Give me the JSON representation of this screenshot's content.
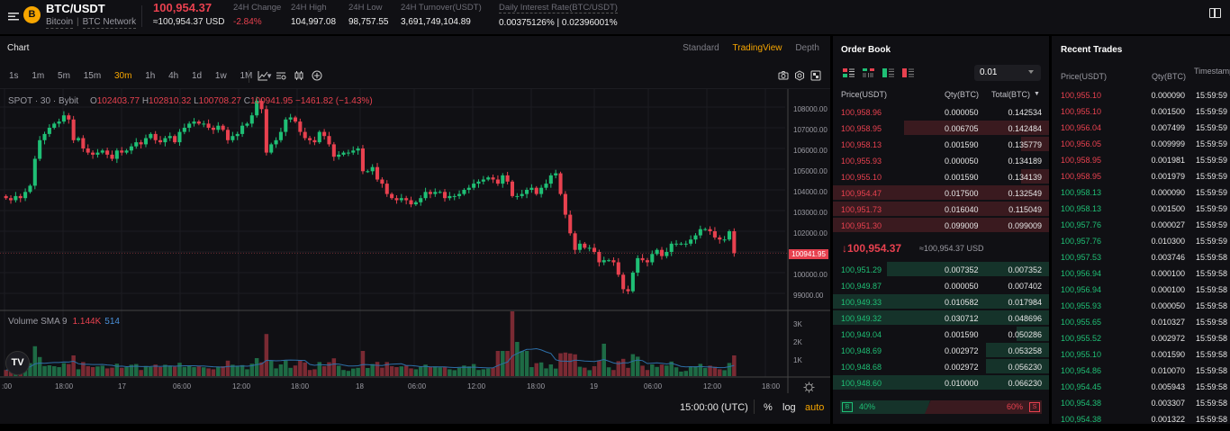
{
  "header": {
    "pair": "BTC/USDT",
    "coin_icon": "bitcoin-icon",
    "coin_name": "Bitcoin",
    "network": "BTC Network",
    "last_price": "100,954.37",
    "last_price_usd": "≈100,954.37 USD",
    "stats": [
      {
        "label": "24H Change",
        "value": "-2.84%",
        "color": "#e8414f"
      },
      {
        "label": "24H High",
        "value": "104,997.08"
      },
      {
        "label": "24H Low",
        "value": "98,757.55"
      },
      {
        "label": "24H Turnover(USDT)",
        "value": "3,691,749,104.89"
      },
      {
        "label": "Daily Interest Rate(BTC/USDT)",
        "value": "0.00375126% | 0.02396001%"
      }
    ]
  },
  "chart": {
    "title": "Chart",
    "views": [
      "Standard",
      "TradingView",
      "Depth"
    ],
    "active_view": "TradingView",
    "intervals": [
      "1s",
      "1m",
      "5m",
      "15m",
      "30m",
      "1h",
      "4h",
      "1d",
      "1w",
      "1M"
    ],
    "active_interval": "30m",
    "legend": {
      "symbol": "SPOT · 30 · Bybit",
      "open_label": "O",
      "open": "102403.77",
      "high_label": "H",
      "high": "102810.32",
      "low_label": "L",
      "low": "100708.27",
      "close_label": "C",
      "close": "100941.95",
      "change": "−1461.82 (−1.43%)"
    },
    "current_price_label": "100941.95",
    "volume_legend": {
      "label": "Volume SMA 9",
      "value1": "1.144K",
      "value2": "514"
    },
    "price_axis": [
      "108000.00",
      "107000.00",
      "106000.00",
      "105000.00",
      "104000.00",
      "103000.00",
      "102000.00",
      "100000.00",
      "99000.00"
    ],
    "volume_axis": [
      "3K",
      "2K",
      "1K"
    ],
    "time_axis": [
      ":00",
      "18:00",
      "17",
      "06:00",
      "12:00",
      "18:00",
      "18",
      "06:00",
      "12:00",
      "18:00",
      "19",
      "06:00",
      "12:00",
      "18:00"
    ],
    "footer": {
      "time": "15:00:00 (UTC)",
      "percent": "%",
      "log": "log",
      "auto": "auto"
    },
    "colors": {
      "up": "#1fbf75",
      "down": "#e8414f",
      "accent": "#f7a600"
    }
  },
  "chart_data": {
    "type": "candlestick",
    "title": "BTC/USDT SPOT 30m",
    "ylabel": "Price (USDT)",
    "ylim": [
      98500,
      108500
    ],
    "close_series_approx": [
      103600,
      103500,
      103700,
      103600,
      103900,
      104200,
      105500,
      106400,
      106700,
      107000,
      107200,
      107300,
      107600,
      107400,
      106400,
      106500,
      106000,
      105800,
      105700,
      105800,
      105900,
      105700,
      105500,
      105900,
      105800,
      105900,
      106100,
      106300,
      106200,
      106500,
      106700,
      106400,
      106300,
      106500,
      106600,
      106300,
      106800,
      107000,
      107200,
      107300,
      107200,
      107200,
      107000,
      106900,
      107100,
      106900,
      106400,
      106600,
      106700,
      107100,
      107200,
      107600,
      108300,
      107900,
      105800,
      106200,
      106400,
      106800,
      107400,
      107500,
      107300,
      106800,
      106500,
      106400,
      106300,
      106800,
      106600,
      106200,
      105600,
      105700,
      105800,
      105800,
      105900,
      106000,
      104900,
      104900,
      105100,
      104500,
      104300,
      103800,
      103600,
      103500,
      103600,
      103500,
      103300,
      103400,
      103600,
      103900,
      103800,
      103900,
      103900,
      103600,
      103700,
      103700,
      103800,
      104000,
      104100,
      104300,
      104400,
      104500,
      104600,
      104500,
      104300,
      104700,
      104400,
      103700,
      103700,
      103800,
      104000,
      104100,
      103800,
      104100,
      104300,
      104700,
      104800,
      103800,
      102800,
      101900,
      101100,
      101400,
      101200,
      101200,
      101000,
      100500,
      100600,
      100600,
      100500,
      99900,
      99200,
      99100,
      100000,
      100700,
      100600,
      100500,
      100900,
      101100,
      100800,
      101000,
      101400,
      101400,
      101400,
      101400,
      101600,
      101800,
      102100,
      102100,
      102000,
      101700,
      101600,
      101600,
      102000,
      100942
    ],
    "volume_note": "Volume bars mostly 300–800, spikes ~2.5K-3.6K around day 18 18:00-21:00"
  },
  "order_book": {
    "title": "Order Book",
    "precision": "0.01",
    "headers": {
      "price": "Price(USDT)",
      "qty": "Qty(BTC)",
      "total": "Total(BTC)"
    },
    "asks": [
      {
        "price": "100,958.96",
        "qty": "0.000050",
        "total": "0.142534",
        "depth": 0
      },
      {
        "price": "100,958.95",
        "qty": "0.006705",
        "total": "0.142484",
        "depth": 67
      },
      {
        "price": "100,958.13",
        "qty": "0.001590",
        "total": "0.135779",
        "depth": 13
      },
      {
        "price": "100,955.93",
        "qty": "0.000050",
        "total": "0.134189",
        "depth": 0
      },
      {
        "price": "100,955.10",
        "qty": "0.001590",
        "total": "0.134139",
        "depth": 13
      },
      {
        "price": "100,954.47",
        "qty": "0.017500",
        "total": "0.132549",
        "depth": 100
      },
      {
        "price": "100,951.73",
        "qty": "0.016040",
        "total": "0.115049",
        "depth": 100
      },
      {
        "price": "100,951.30",
        "qty": "0.099009",
        "total": "0.099009",
        "depth": 100
      }
    ],
    "mid_price": "100,954.37",
    "mid_usd": "≈100,954.37 USD",
    "bids": [
      {
        "price": "100,951.29",
        "qty": "0.007352",
        "total": "0.007352",
        "depth": 75
      },
      {
        "price": "100,949.87",
        "qty": "0.000050",
        "total": "0.007402",
        "depth": 0
      },
      {
        "price": "100,949.33",
        "qty": "0.010582",
        "total": "0.017984",
        "depth": 100
      },
      {
        "price": "100,949.32",
        "qty": "0.030712",
        "total": "0.048696",
        "depth": 100
      },
      {
        "price": "100,949.04",
        "qty": "0.001590",
        "total": "0.050286",
        "depth": 15
      },
      {
        "price": "100,948.69",
        "qty": "0.002972",
        "total": "0.053258",
        "depth": 29
      },
      {
        "price": "100,948.68",
        "qty": "0.002972",
        "total": "0.056230",
        "depth": 29
      },
      {
        "price": "100,948.60",
        "qty": "0.010000",
        "total": "0.066230",
        "depth": 100
      }
    ],
    "buy_ratio": "40%",
    "sell_ratio": "60%",
    "buy_label": "B",
    "sell_label": "S"
  },
  "recent_trades": {
    "title": "Recent Trades",
    "headers": {
      "price": "Price(USDT)",
      "qty": "Qty(BTC)",
      "time": "Timestamp"
    },
    "rows": [
      {
        "price": "100,955.10",
        "qty": "0.000090",
        "time": "15:59:59",
        "side": "sell"
      },
      {
        "price": "100,955.10",
        "qty": "0.001500",
        "time": "15:59:59",
        "side": "sell"
      },
      {
        "price": "100,956.04",
        "qty": "0.007499",
        "time": "15:59:59",
        "side": "sell"
      },
      {
        "price": "100,956.05",
        "qty": "0.009999",
        "time": "15:59:59",
        "side": "sell"
      },
      {
        "price": "100,958.95",
        "qty": "0.001981",
        "time": "15:59:59",
        "side": "sell"
      },
      {
        "price": "100,958.95",
        "qty": "0.001979",
        "time": "15:59:59",
        "side": "sell"
      },
      {
        "price": "100,958.13",
        "qty": "0.000090",
        "time": "15:59:59",
        "side": "buy"
      },
      {
        "price": "100,958.13",
        "qty": "0.001500",
        "time": "15:59:59",
        "side": "buy"
      },
      {
        "price": "100,957.76",
        "qty": "0.000027",
        "time": "15:59:59",
        "side": "buy"
      },
      {
        "price": "100,957.76",
        "qty": "0.010300",
        "time": "15:59:59",
        "side": "buy"
      },
      {
        "price": "100,957.53",
        "qty": "0.003746",
        "time": "15:59:58",
        "side": "buy"
      },
      {
        "price": "100,956.94",
        "qty": "0.000100",
        "time": "15:59:58",
        "side": "buy"
      },
      {
        "price": "100,956.94",
        "qty": "0.000100",
        "time": "15:59:58",
        "side": "buy"
      },
      {
        "price": "100,955.93",
        "qty": "0.000050",
        "time": "15:59:58",
        "side": "buy"
      },
      {
        "price": "100,955.65",
        "qty": "0.010327",
        "time": "15:59:58",
        "side": "buy"
      },
      {
        "price": "100,955.52",
        "qty": "0.002972",
        "time": "15:59:58",
        "side": "buy"
      },
      {
        "price": "100,955.10",
        "qty": "0.001590",
        "time": "15:59:58",
        "side": "buy"
      },
      {
        "price": "100,954.86",
        "qty": "0.010070",
        "time": "15:59:58",
        "side": "buy"
      },
      {
        "price": "100,954.45",
        "qty": "0.005943",
        "time": "15:59:58",
        "side": "buy"
      },
      {
        "price": "100,954.38",
        "qty": "0.003307",
        "time": "15:59:58",
        "side": "buy"
      },
      {
        "price": "100,954.38",
        "qty": "0.001322",
        "time": "15:59:58",
        "side": "buy"
      }
    ]
  }
}
